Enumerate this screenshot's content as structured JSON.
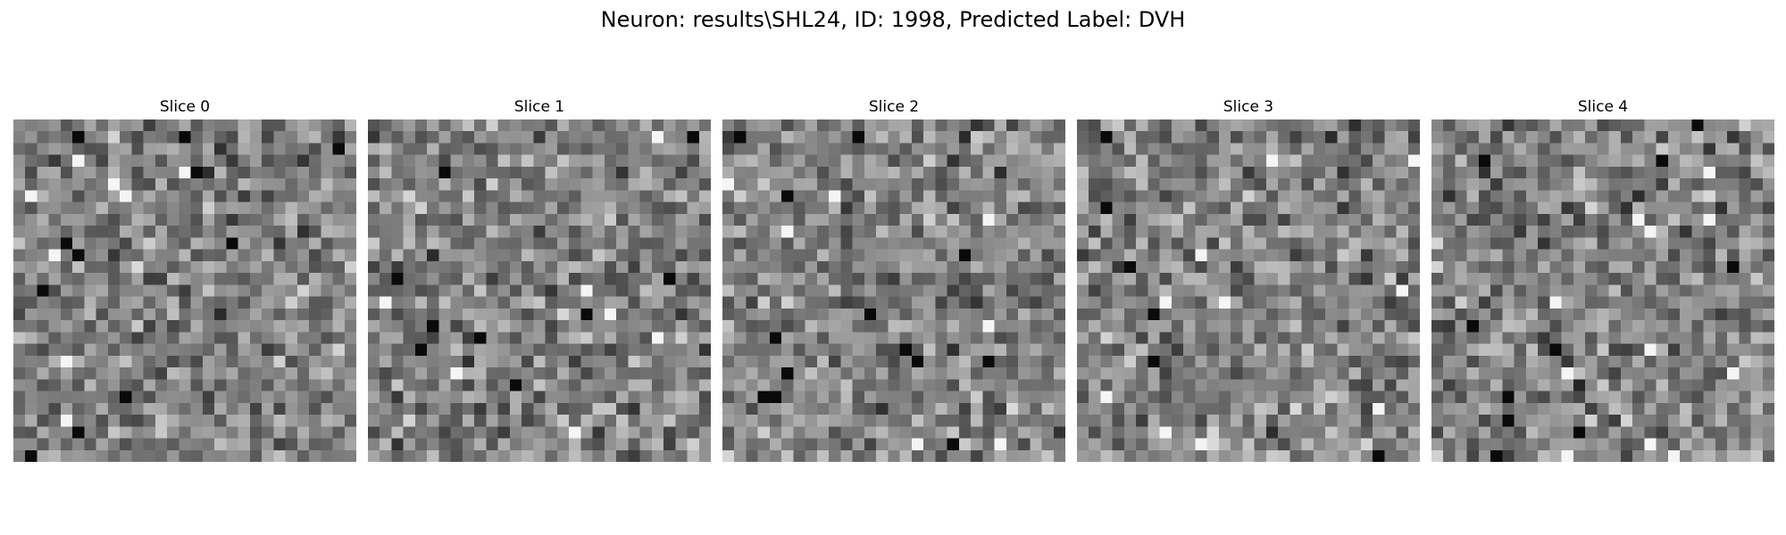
{
  "figure": {
    "title": "Neuron: results\\SHL24, ID: 1998, Predicted Label: DVH"
  },
  "panels": [
    {
      "title": "Slice 0",
      "image": "grayscale-noise"
    },
    {
      "title": "Slice 1",
      "image": "grayscale-noise"
    },
    {
      "title": "Slice 2",
      "image": "grayscale-noise"
    },
    {
      "title": "Slice 3",
      "image": "grayscale-noise"
    },
    {
      "title": "Slice 4",
      "image": "grayscale-noise"
    }
  ],
  "colormap": "gray"
}
